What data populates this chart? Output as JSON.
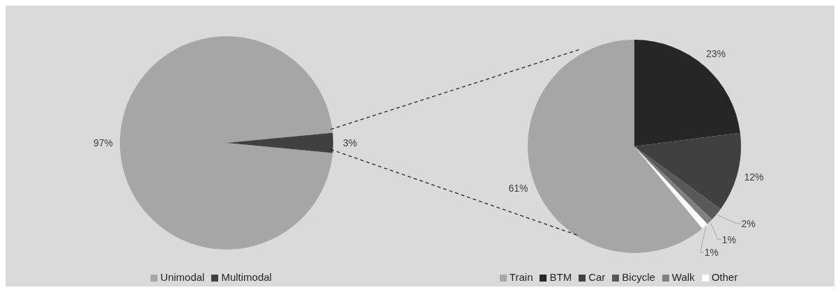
{
  "chart_data": [
    {
      "type": "pie",
      "categories": [
        "Unimodal",
        "Multimodal"
      ],
      "values": [
        97,
        3
      ],
      "colors": [
        "#a6a6a6",
        "#404040"
      ],
      "value_labels": [
        "97%",
        "3%"
      ],
      "legend": "bottom"
    },
    {
      "type": "pie",
      "categories": [
        "Train",
        "BTM",
        "Car",
        "Bicycle",
        "Walk",
        "Other"
      ],
      "values": [
        61,
        23,
        12,
        2,
        1,
        1
      ],
      "colors": [
        "#a6a6a6",
        "#262626",
        "#404040",
        "#595959",
        "#7f7f7f",
        "#ffffff"
      ],
      "value_labels": [
        "61%",
        "23%",
        "12%",
        "2%",
        "1%",
        "1%"
      ],
      "legend": "bottom"
    }
  ]
}
